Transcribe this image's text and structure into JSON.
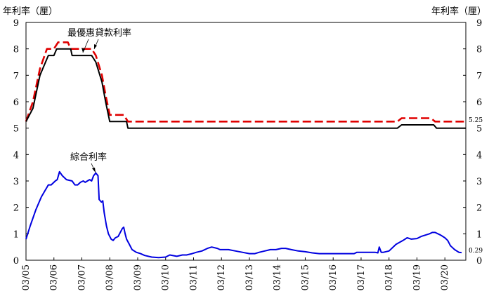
{
  "chart_data": {
    "type": "line",
    "left_axis_label": "年利率（厘）",
    "right_axis_label": "年利率（厘）",
    "ylim": [
      0,
      9
    ],
    "yticks": [
      "0",
      "1",
      "2",
      "3",
      "4",
      "5",
      "6",
      "7",
      "8",
      "9"
    ],
    "xlim": [
      2005,
      2020.75
    ],
    "xticks": [
      {
        "x": 2005,
        "label": "03/05"
      },
      {
        "x": 2006,
        "label": "03/06"
      },
      {
        "x": 2007,
        "label": "03/07"
      },
      {
        "x": 2008,
        "label": "03/08"
      },
      {
        "x": 2009,
        "label": "03/09"
      },
      {
        "x": 2010,
        "label": "03/10"
      },
      {
        "x": 2011,
        "label": "03/11"
      },
      {
        "x": 2012,
        "label": "03/12"
      },
      {
        "x": 2013,
        "label": "03/13"
      },
      {
        "x": 2014,
        "label": "03/14"
      },
      {
        "x": 2015,
        "label": "03/15"
      },
      {
        "x": 2016,
        "label": "03/16"
      },
      {
        "x": 2017,
        "label": "03/17"
      },
      {
        "x": 2018,
        "label": "03/18"
      },
      {
        "x": 2019,
        "label": "03/19"
      },
      {
        "x": 2020,
        "label": "03/20"
      }
    ],
    "annotations": [
      {
        "text": "最優惠貸款利率",
        "points_to": "best-lending-rate"
      },
      {
        "text": "綜合利率",
        "points_to": "composite-rate"
      }
    ],
    "end_labels": [
      {
        "series": "best-lending-rate-upper",
        "text": "5.25"
      },
      {
        "series": "composite-rate",
        "text": "0.29"
      }
    ],
    "series": [
      {
        "key": "best-lending-rate-upper",
        "color": "#e00000",
        "dash": true,
        "points": [
          [
            2005.0,
            5.25
          ],
          [
            2005.25,
            6.0
          ],
          [
            2005.5,
            7.25
          ],
          [
            2005.75,
            8.0
          ],
          [
            2006.0,
            8.0
          ],
          [
            2006.15,
            8.25
          ],
          [
            2006.5,
            8.25
          ],
          [
            2006.6,
            8.0
          ],
          [
            2007.35,
            8.0
          ],
          [
            2007.5,
            7.75
          ],
          [
            2007.72,
            7.0
          ],
          [
            2007.85,
            6.25
          ],
          [
            2008.0,
            5.5
          ],
          [
            2008.5,
            5.5
          ],
          [
            2008.65,
            5.25
          ],
          [
            2018.3,
            5.25
          ],
          [
            2018.45,
            5.375
          ],
          [
            2019.5,
            5.375
          ],
          [
            2019.65,
            5.25
          ],
          [
            2020.75,
            5.25
          ]
        ]
      },
      {
        "key": "best-lending-rate-lower",
        "color": "#000000",
        "dash": false,
        "points": [
          [
            2005.0,
            5.25
          ],
          [
            2005.25,
            5.75
          ],
          [
            2005.5,
            7.0
          ],
          [
            2005.8,
            7.75
          ],
          [
            2006.0,
            7.75
          ],
          [
            2006.1,
            8.0
          ],
          [
            2006.6,
            8.0
          ],
          [
            2006.65,
            7.75
          ],
          [
            2007.35,
            7.75
          ],
          [
            2007.5,
            7.5
          ],
          [
            2007.72,
            6.75
          ],
          [
            2007.85,
            6.0
          ],
          [
            2008.0,
            5.25
          ],
          [
            2008.6,
            5.25
          ],
          [
            2008.65,
            5.0
          ],
          [
            2018.3,
            5.0
          ],
          [
            2018.45,
            5.125
          ],
          [
            2019.6,
            5.125
          ],
          [
            2019.7,
            5.0
          ],
          [
            2020.75,
            5.0
          ]
        ]
      },
      {
        "key": "composite-rate",
        "color": "#0000e0",
        "dash": false,
        "points": [
          [
            2005.0,
            0.8
          ],
          [
            2005.15,
            1.3
          ],
          [
            2005.35,
            1.9
          ],
          [
            2005.55,
            2.4
          ],
          [
            2005.8,
            2.85
          ],
          [
            2005.9,
            2.85
          ],
          [
            2006.05,
            3.0
          ],
          [
            2006.12,
            3.05
          ],
          [
            2006.2,
            3.35
          ],
          [
            2006.3,
            3.2
          ],
          [
            2006.45,
            3.05
          ],
          [
            2006.65,
            3.0
          ],
          [
            2006.75,
            2.85
          ],
          [
            2006.85,
            2.85
          ],
          [
            2006.95,
            2.95
          ],
          [
            2007.05,
            3.0
          ],
          [
            2007.12,
            2.95
          ],
          [
            2007.2,
            3.0
          ],
          [
            2007.28,
            3.05
          ],
          [
            2007.35,
            3.0
          ],
          [
            2007.42,
            3.2
          ],
          [
            2007.5,
            3.3
          ],
          [
            2007.58,
            3.2
          ],
          [
            2007.62,
            2.3
          ],
          [
            2007.7,
            2.2
          ],
          [
            2007.75,
            2.25
          ],
          [
            2007.8,
            1.8
          ],
          [
            2007.88,
            1.3
          ],
          [
            2007.95,
            1.0
          ],
          [
            2008.05,
            0.8
          ],
          [
            2008.12,
            0.75
          ],
          [
            2008.2,
            0.85
          ],
          [
            2008.3,
            0.9
          ],
          [
            2008.45,
            1.2
          ],
          [
            2008.5,
            1.25
          ],
          [
            2008.55,
            1.0
          ],
          [
            2008.6,
            0.8
          ],
          [
            2008.7,
            0.6
          ],
          [
            2008.8,
            0.4
          ],
          [
            2008.95,
            0.3
          ],
          [
            2009.1,
            0.25
          ],
          [
            2009.25,
            0.18
          ],
          [
            2009.5,
            0.12
          ],
          [
            2009.75,
            0.1
          ],
          [
            2010.0,
            0.12
          ],
          [
            2010.15,
            0.2
          ],
          [
            2010.4,
            0.15
          ],
          [
            2010.6,
            0.2
          ],
          [
            2010.75,
            0.2
          ],
          [
            2010.95,
            0.25
          ],
          [
            2011.1,
            0.3
          ],
          [
            2011.3,
            0.35
          ],
          [
            2011.5,
            0.45
          ],
          [
            2011.65,
            0.5
          ],
          [
            2011.85,
            0.45
          ],
          [
            2011.95,
            0.4
          ],
          [
            2012.1,
            0.4
          ],
          [
            2012.25,
            0.4
          ],
          [
            2012.5,
            0.35
          ],
          [
            2012.75,
            0.3
          ],
          [
            2013.0,
            0.25
          ],
          [
            2013.2,
            0.25
          ],
          [
            2013.35,
            0.3
          ],
          [
            2013.55,
            0.35
          ],
          [
            2013.75,
            0.4
          ],
          [
            2013.95,
            0.4
          ],
          [
            2014.15,
            0.45
          ],
          [
            2014.3,
            0.45
          ],
          [
            2014.5,
            0.4
          ],
          [
            2014.75,
            0.35
          ],
          [
            2015.0,
            0.32
          ],
          [
            2015.25,
            0.28
          ],
          [
            2015.5,
            0.25
          ],
          [
            2016.0,
            0.25
          ],
          [
            2016.5,
            0.25
          ],
          [
            2016.75,
            0.25
          ],
          [
            2016.85,
            0.3
          ],
          [
            2017.0,
            0.3
          ],
          [
            2017.25,
            0.3
          ],
          [
            2017.5,
            0.3
          ],
          [
            2017.6,
            0.28
          ],
          [
            2017.65,
            0.5
          ],
          [
            2017.72,
            0.3
          ],
          [
            2017.8,
            0.3
          ],
          [
            2018.0,
            0.35
          ],
          [
            2018.25,
            0.6
          ],
          [
            2018.5,
            0.75
          ],
          [
            2018.65,
            0.85
          ],
          [
            2018.8,
            0.8
          ],
          [
            2019.0,
            0.82
          ],
          [
            2019.15,
            0.9
          ],
          [
            2019.3,
            0.95
          ],
          [
            2019.45,
            1.0
          ],
          [
            2019.55,
            1.05
          ],
          [
            2019.65,
            1.05
          ],
          [
            2019.75,
            1.0
          ],
          [
            2019.85,
            0.95
          ],
          [
            2020.0,
            0.85
          ],
          [
            2020.1,
            0.75
          ],
          [
            2020.2,
            0.55
          ],
          [
            2020.35,
            0.4
          ],
          [
            2020.5,
            0.3
          ],
          [
            2020.6,
            0.29
          ]
        ]
      }
    ]
  }
}
